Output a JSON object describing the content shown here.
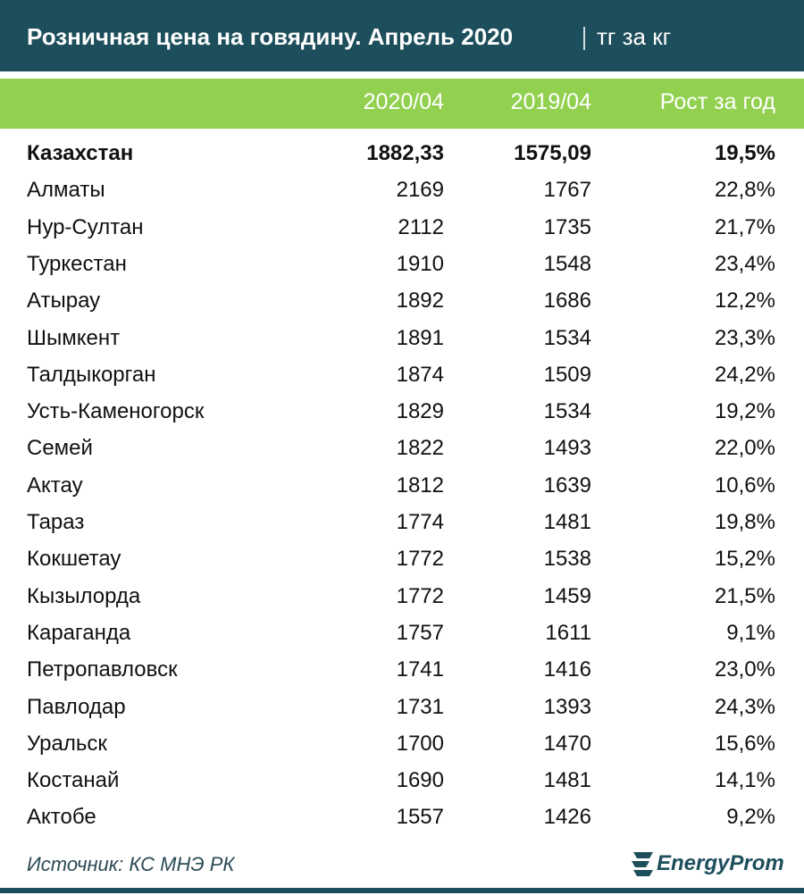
{
  "header": {
    "title": "Розничная цена на говядину. Апрель 2020",
    "unit": "тг за кг"
  },
  "table": {
    "columns": [
      "2020/04",
      "2019/04",
      "Рост за год"
    ],
    "rows": [
      [
        "Казахстан",
        "1882,33",
        "1575,09",
        "19,5%"
      ],
      [
        "Алматы",
        "2169",
        "1767",
        "22,8%"
      ],
      [
        "Нур-Султан",
        "2112",
        "1735",
        "21,7%"
      ],
      [
        "Туркестан",
        "1910",
        "1548",
        "23,4%"
      ],
      [
        "Атырау",
        "1892",
        "1686",
        "12,2%"
      ],
      [
        "Шымкент",
        "1891",
        "1534",
        "23,3%"
      ],
      [
        "Талдыкорган",
        "1874",
        "1509",
        "24,2%"
      ],
      [
        "Усть-Каменогорск",
        "1829",
        "1534",
        "19,2%"
      ],
      [
        "Семей",
        "1822",
        "1493",
        "22,0%"
      ],
      [
        "Актау",
        "1812",
        "1639",
        "10,6%"
      ],
      [
        "Тараз",
        "1774",
        "1481",
        "19,8%"
      ],
      [
        "Кокшетау",
        "1772",
        "1538",
        "15,2%"
      ],
      [
        "Кызылорда",
        "1772",
        "1459",
        "21,5%"
      ],
      [
        "Караганда",
        "1757",
        "1611",
        "9,1%"
      ],
      [
        "Петропавловск",
        "1741",
        "1416",
        "23,0%"
      ],
      [
        "Павлодар",
        "1731",
        "1393",
        "24,3%"
      ],
      [
        "Уральск",
        "1700",
        "1470",
        "15,6%"
      ],
      [
        "Костанай",
        "1690",
        "1481",
        "14,1%"
      ],
      [
        "Актобе",
        "1557",
        "1426",
        "9,2%"
      ]
    ]
  },
  "footer": {
    "source": "Источник: КС МНЭ РК",
    "logo": "EnergyProm"
  }
}
